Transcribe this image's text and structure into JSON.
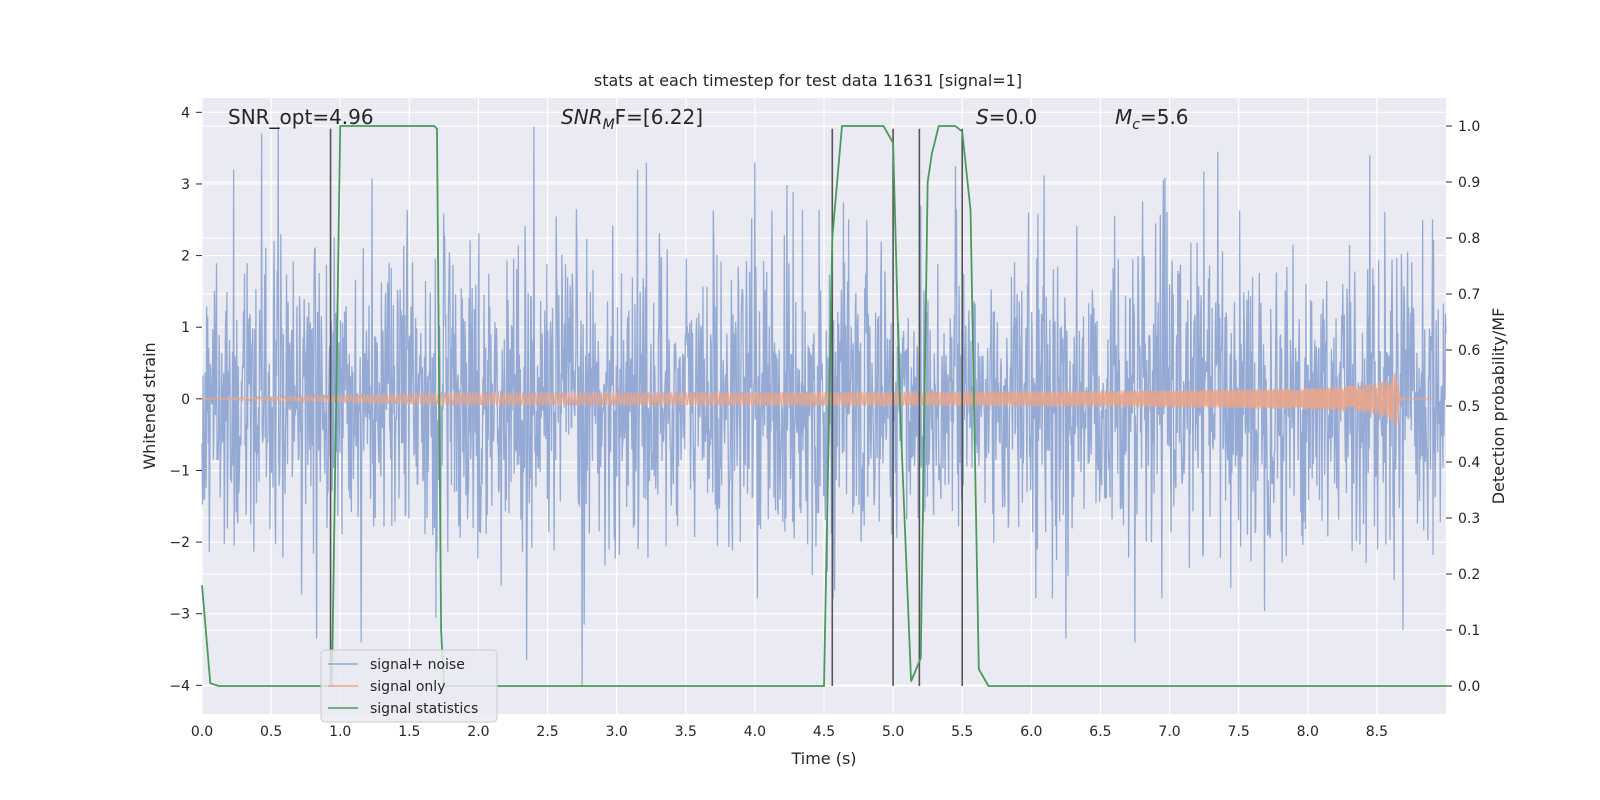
{
  "chart_data": {
    "type": "line",
    "title": "stats at each timestep for test data 11631 [signal=1]",
    "xlabel": "Time (s)",
    "ylabel_left": "Whitened strain",
    "ylabel_right": "Detection probability/MF",
    "xlim": [
      0,
      9.0
    ],
    "ylim_left": [
      -4.4,
      4.2
    ],
    "ylim_right": [
      -0.05,
      1.05
    ],
    "x_ticks": [
      "0.0",
      "0.5",
      "1.0",
      "1.5",
      "2.0",
      "2.5",
      "3.0",
      "3.5",
      "4.0",
      "4.5",
      "5.0",
      "5.5",
      "6.0",
      "6.5",
      "7.0",
      "7.5",
      "8.0",
      "8.5"
    ],
    "y_left_ticks": [
      "4",
      "3",
      "2",
      "1",
      "0",
      "−1",
      "−2",
      "−3",
      "−4"
    ],
    "y_right_ticks": [
      "1.0",
      "0.9",
      "0.8",
      "0.7",
      "0.6",
      "0.5",
      "0.4",
      "0.3",
      "0.2",
      "0.1",
      "0.0"
    ],
    "grid": true,
    "legend_position": "lower-left",
    "annotations": [
      {
        "text": "SNR_opt=4.96",
        "x": 0.2,
        "y": 3.85
      },
      {
        "text_main": "SNR",
        "text_sub": "M",
        "text_tail": "F=[6.22]",
        "x": 2.6,
        "y": 3.85
      },
      {
        "text_main": "S",
        "text_tail": "=0.0",
        "x": 5.6,
        "y": 3.85
      },
      {
        "text_main": "M",
        "text_sub": "c",
        "text_tail": "=5.6",
        "x": 6.6,
        "y": 3.85
      }
    ],
    "series": [
      {
        "name": "signal+ noise",
        "color": "#8fa7d2",
        "kind": "noise",
        "approx_std": 1.05,
        "x_range": [
          0,
          9.0
        ],
        "peaks": [
          {
            "x": 0.23,
            "y": 3.2
          },
          {
            "x": 0.43,
            "y": 3.7
          },
          {
            "x": 0.55,
            "y": 3.8
          },
          {
            "x": 0.83,
            "y": -3.35
          },
          {
            "x": 1.15,
            "y": -3.4
          },
          {
            "x": 2.4,
            "y": 3.8
          },
          {
            "x": 2.35,
            "y": -3.65
          },
          {
            "x": 2.75,
            "y": -4.0
          },
          {
            "x": 3.15,
            "y": 3.2
          },
          {
            "x": 4.0,
            "y": 3.3
          },
          {
            "x": 5.45,
            "y": 3.25
          },
          {
            "x": 6.25,
            "y": -3.35
          },
          {
            "x": 6.75,
            "y": -3.4
          },
          {
            "x": 7.35,
            "y": 3.45
          },
          {
            "x": 8.45,
            "y": 3.4
          }
        ]
      },
      {
        "name": "signal only",
        "color": "#e9a58b",
        "kind": "chirp",
        "x_range": [
          0,
          8.9
        ],
        "merger_time": 8.65,
        "max_amplitude": 0.55
      },
      {
        "name": "signal statistics",
        "color": "#4a9a5c",
        "axis": "right",
        "x": [
          0.0,
          0.06,
          0.12,
          0.2,
          0.9,
          0.94,
          1.0,
          1.68,
          1.7,
          1.73,
          1.75,
          4.5,
          4.56,
          4.63,
          4.93,
          5.0,
          5.05,
          5.13,
          5.2,
          5.25,
          5.28,
          5.33,
          5.45,
          5.5,
          5.56,
          5.62,
          5.69,
          9.0
        ],
        "y": [
          0.18,
          0.005,
          0.0,
          0.0,
          0.0,
          0.0,
          1.0,
          1.0,
          0.995,
          0.1,
          0.0,
          0.0,
          0.8,
          1.0,
          1.0,
          0.97,
          0.5,
          0.008,
          0.05,
          0.9,
          0.95,
          1.0,
          1.0,
          0.99,
          0.85,
          0.03,
          0.0,
          0.0
        ]
      }
    ],
    "vertical_lines": {
      "color": "#555555",
      "x": [
        0.93,
        4.56,
        5.0,
        5.19,
        5.5
      ],
      "y_top": 0.995,
      "y_bottom": 0.0
    }
  }
}
